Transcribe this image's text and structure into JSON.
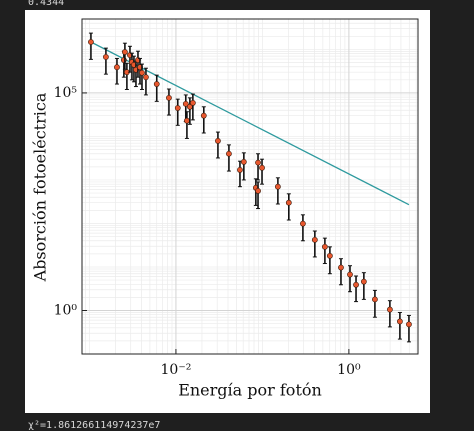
{
  "header_text": "0.4344",
  "footer_text": "χ²=1.861266114974237e7",
  "chart_data": {
    "type": "scatter",
    "x_label": "Energía por fotón",
    "y_label": "Absorción fotoeléctrica",
    "log_x": true,
    "log_y": true,
    "grid": true,
    "xlim": [
      0.00082,
      6.3
    ],
    "ylim": [
      0.1,
      5000000
    ],
    "xticks": [
      {
        "value": 0.01,
        "label": "10⁻²"
      },
      {
        "value": 1,
        "label": "10⁰"
      }
    ],
    "yticks": [
      {
        "value": 1,
        "label": "10⁰"
      },
      {
        "value": 100000,
        "label": "10⁵"
      }
    ],
    "points": {
      "color": "#e8572e",
      "x": [
        0.00104,
        0.00155,
        0.00208,
        0.0025,
        0.00257,
        0.00271,
        0.00294,
        0.0031,
        0.00327,
        0.00345,
        0.00364,
        0.00384,
        0.00405,
        0.0045,
        0.006,
        0.0083,
        0.0105,
        0.013,
        0.0134,
        0.0145,
        0.0157,
        0.021,
        0.0306,
        0.041,
        0.055,
        0.061,
        0.084,
        0.089,
        0.089,
        0.099,
        0.151,
        0.202,
        0.294,
        0.404,
        0.528,
        0.603,
        0.81,
        1.03,
        1.21,
        1.49,
        2.0,
        2.98,
        3.89,
        4.95
      ],
      "values": [
        1480000,
        670000,
        390000,
        570000,
        870000,
        300000,
        740000,
        510000,
        440000,
        340000,
        570000,
        390000,
        290000,
        230000,
        160000,
        77000,
        45000,
        56000,
        23000,
        48000,
        59000,
        30000,
        7900,
        4000,
        1700,
        2600,
        660,
        560,
        2500,
        1900,
        700,
        300,
        99,
        42,
        29,
        18,
        9.7,
        6.7,
        3.9,
        4.6,
        1.8,
        1.05,
        0.56,
        0.48
      ],
      "errors": [
        890000,
        400000,
        230000,
        340000,
        520000,
        180000,
        440000,
        310000,
        260000,
        200000,
        340000,
        230000,
        170000,
        140000,
        96000,
        46000,
        27000,
        34000,
        14000,
        29000,
        35000,
        18000,
        4700,
        2400,
        1000,
        1600,
        400,
        340,
        1500,
        1100,
        420,
        180,
        59,
        25,
        17,
        11,
        5.8,
        4.0,
        2.3,
        2.8,
        1.1,
        0.63,
        0.34,
        0.29
      ]
    },
    "fit_line": {
      "color": "#2e9a9e",
      "x": [
        0.00104,
        4.95
      ],
      "values": [
        1480000,
        270
      ]
    }
  }
}
